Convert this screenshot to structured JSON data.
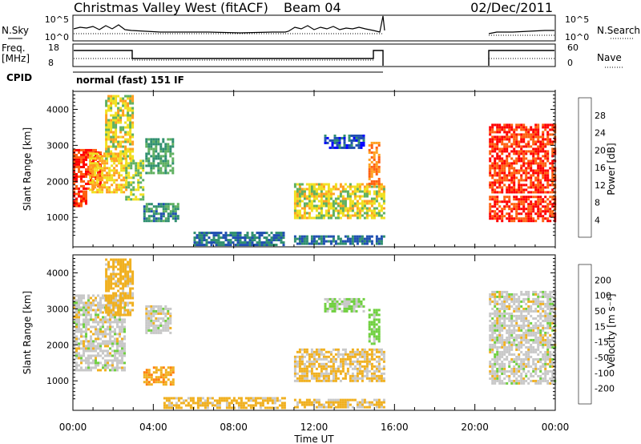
{
  "header": {
    "station": "Christmas Valley West (fitACF)",
    "beam": "Beam 04",
    "date": "02/Dec/2011"
  },
  "strip_labels": {
    "nsky": "N.Sky",
    "nsky_ticks": [
      "10^5",
      "10^0"
    ],
    "nsearch": "N.Search",
    "freq": "Freq.",
    "freq_unit": "[MHz]",
    "freq_ticks": [
      "18",
      "8"
    ],
    "nave": "Nave",
    "nave_ticks": [
      "60",
      "0"
    ],
    "cpid": "CPID",
    "cpid_text": "normal (fast) 151 IF"
  },
  "axes": {
    "ylabel": "Slant Range [km]",
    "xlabel": "Time UT",
    "yticks": [
      "1000",
      "2000",
      "3000",
      "4000"
    ],
    "xticks": [
      "00:00",
      "04:00",
      "08:00",
      "12:00",
      "16:00",
      "20:00",
      "00:00"
    ]
  },
  "colorbars": {
    "power": {
      "label": "Power [dB]",
      "ticks": [
        "4",
        "8",
        "12",
        "16",
        "20",
        "24",
        "28"
      ],
      "colors": [
        "#0000ff",
        "#1f4fb0",
        "#2f8f6f",
        "#5fb060",
        "#f0e020",
        "#ffa020",
        "#ff6010",
        "#ff0000"
      ]
    },
    "velocity": {
      "label": "Velocity [m s⁻¹]",
      "ticks": [
        "200",
        "100",
        "50",
        "15",
        "-15",
        "-50",
        "-100",
        "-200"
      ],
      "colors": [
        "#2030a0",
        "#2060c0",
        "#2f8f4f",
        "#70d040",
        "#c8c8c8",
        "#f0b020",
        "#ff8010",
        "#ff4010",
        "#ff0000"
      ]
    }
  },
  "chart_data": [
    {
      "type": "heatmap",
      "title": "Power",
      "xlabel": "Time UT",
      "ylabel": "Slant Range [km]",
      "xlim": [
        "00:00",
        "24:00"
      ],
      "ylim": [
        180,
        4500
      ],
      "colorbar": "Power [dB]",
      "regions": [
        {
          "t": [
            0.0,
            0.6
          ],
          "r": [
            1300,
            1750
          ],
          "dB": 28
        },
        {
          "t": [
            0.0,
            1.4
          ],
          "r": [
            1800,
            2900
          ],
          "dB": 28
        },
        {
          "t": [
            0.8,
            2.6
          ],
          "r": [
            1700,
            2800
          ],
          "dB": 20
        },
        {
          "t": [
            1.6,
            3.0
          ],
          "r": [
            2600,
            4400
          ],
          "dB": 18
        },
        {
          "t": [
            2.6,
            3.5
          ],
          "r": [
            1500,
            2600
          ],
          "dB": 16
        },
        {
          "t": [
            3.5,
            5.2
          ],
          "r": [
            900,
            1400
          ],
          "dB": 10
        },
        {
          "t": [
            3.6,
            5.0
          ],
          "r": [
            2200,
            3200
          ],
          "dB": 12
        },
        {
          "t": [
            6.0,
            10.5
          ],
          "r": [
            250,
            600
          ],
          "dB": 8
        },
        {
          "t": [
            11.0,
            15.5
          ],
          "r": [
            1000,
            1950
          ],
          "dB": 18
        },
        {
          "t": [
            11.0,
            15.5
          ],
          "r": [
            250,
            500
          ],
          "dB": 8
        },
        {
          "t": [
            12.5,
            14.5
          ],
          "r": [
            2900,
            3300
          ],
          "dB": 6
        },
        {
          "t": [
            14.7,
            15.2
          ],
          "r": [
            1900,
            3100
          ],
          "dB": 24
        },
        {
          "t": [
            20.7,
            24.0
          ],
          "r": [
            900,
            1600
          ],
          "dB": 28
        },
        {
          "t": [
            20.7,
            24.0
          ],
          "r": [
            1700,
            3600
          ],
          "dB": 28
        }
      ]
    },
    {
      "type": "heatmap",
      "title": "Velocity",
      "xlabel": "Time UT",
      "ylabel": "Slant Range [km]",
      "xlim": [
        "00:00",
        "24:00"
      ],
      "ylim": [
        180,
        4500
      ],
      "colorbar": "Velocity [m s⁻¹]",
      "regions": [
        {
          "t": [
            0.0,
            2.6
          ],
          "r": [
            1300,
            3400
          ],
          "v": 0
        },
        {
          "t": [
            1.6,
            3.0
          ],
          "r": [
            2800,
            4400
          ],
          "v": -30
        },
        {
          "t": [
            3.5,
            5.0
          ],
          "r": [
            900,
            1400
          ],
          "v": -40
        },
        {
          "t": [
            3.6,
            4.8
          ],
          "r": [
            2300,
            3100
          ],
          "v": 0
        },
        {
          "t": [
            4.5,
            10.5
          ],
          "r": [
            250,
            550
          ],
          "v": -30
        },
        {
          "t": [
            11.0,
            15.5
          ],
          "r": [
            1000,
            1900
          ],
          "v": -20
        },
        {
          "t": [
            11.0,
            15.5
          ],
          "r": [
            250,
            500
          ],
          "v": -20
        },
        {
          "t": [
            12.5,
            14.5
          ],
          "r": [
            2900,
            3300
          ],
          "v": 20
        },
        {
          "t": [
            14.7,
            15.2
          ],
          "r": [
            2000,
            3000
          ],
          "v": 30
        },
        {
          "t": [
            20.7,
            24.0
          ],
          "r": [
            900,
            3500
          ],
          "v": 0
        }
      ]
    }
  ]
}
